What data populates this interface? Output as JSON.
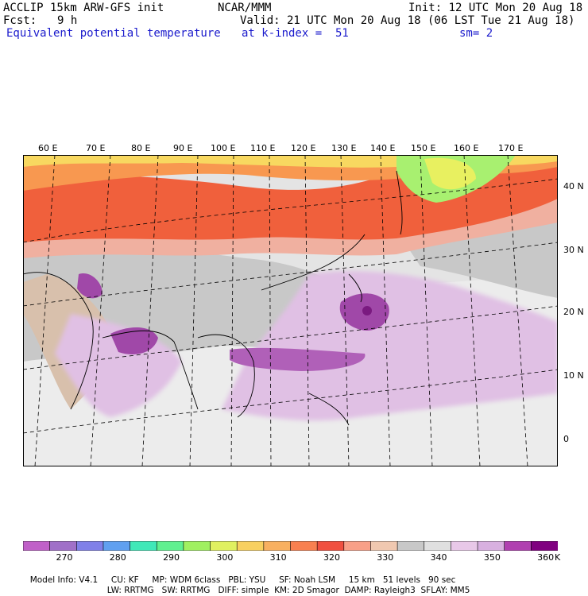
{
  "header": {
    "left_line1": "ACCLIP 15km ARW-GFS init",
    "left_line2_label": "Fcst:",
    "left_line2_value": "9 h",
    "center_line1": "NCAR/MMM",
    "right_line1": "Init: 12 UTC Mon 20 Aug 18",
    "right_line2": "Valid: 21 UTC Mon 20 Aug 18 (06 LST Tue 21 Aug 18)",
    "field_name": "Equivalent potential temperature",
    "level_label": "at k-index =  51",
    "smoothing": "sm= 2"
  },
  "map": {
    "longitude_labels": [
      "60 E",
      "70 E",
      "80 E",
      "90 E",
      "100 E",
      "110 E",
      "120 E",
      "130 E",
      "140 E",
      "150 E",
      "160 E",
      "170 E"
    ],
    "latitude_labels": [
      "40 N",
      "30 N",
      "20 N",
      "10 N",
      "0"
    ],
    "features": {
      "typhoon_center": "Western Pacific near 20N 135E (dark purple closed contour)"
    }
  },
  "colorbar": {
    "colors": [
      "#c060c8",
      "#a070c8",
      "#8080e8",
      "#60a0f0",
      "#40e8b8",
      "#60f090",
      "#a0f060",
      "#e0f060",
      "#f8d060",
      "#f8b060",
      "#f88050",
      "#f05040",
      "#f8a088",
      "#f0c8b0",
      "#c8c8c8",
      "#e0e0e0",
      "#e8c8e8",
      "#d8b0e0",
      "#b040b0",
      "#800080"
    ],
    "tick_labels": [
      "270",
      "280",
      "290",
      "300",
      "310",
      "320",
      "330",
      "340",
      "350",
      "360"
    ],
    "unit": "K"
  },
  "footer": {
    "line1": [
      "Model Info: V4.1",
      "CU: KF",
      "MP: WDM 6class",
      "PBL: YSU",
      "SF: Noah LSM",
      "15 km",
      "51 levels",
      "90 sec"
    ],
    "line2": [
      "LW: RRTMG",
      "SW: RRTMG",
      "DIFF: simple",
      "KM: 2D Smagor",
      "DAMP: Rayleigh3",
      "SFLAY: MM5"
    ]
  }
}
